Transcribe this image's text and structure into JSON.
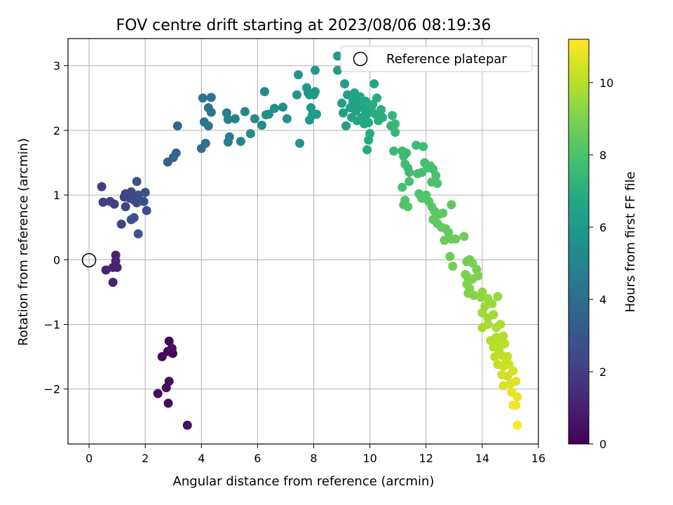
{
  "chart_data": {
    "type": "scatter",
    "title": "FOV centre drift starting at 2023/08/06 08:19:36",
    "xlabel": "Angular distance from reference (arcmin)",
    "ylabel": "Rotation from reference (arcmin)",
    "xlim": [
      -0.75,
      16
    ],
    "ylim": [
      -2.85,
      3.42
    ],
    "xticks": [
      0,
      2,
      4,
      6,
      8,
      10,
      12,
      14,
      16
    ],
    "xtick_labels": [
      "0",
      "2",
      "4",
      "6",
      "8",
      "10",
      "12",
      "14",
      "16"
    ],
    "yticks": [
      -2,
      -1,
      0,
      1,
      2,
      3
    ],
    "ytick_labels": [
      "−2",
      "−1",
      "0",
      "1",
      "2",
      "3"
    ],
    "grid": true,
    "legend": {
      "placement": "upper right",
      "label": "Reference platepar"
    },
    "reference_point": {
      "x": 0,
      "y": 0
    },
    "colorbar": {
      "label": "Hours from first FF file",
      "range": [
        0,
        11.2
      ],
      "ticks": [
        0,
        2,
        4,
        6,
        8,
        10
      ],
      "tick_labels": [
        "0",
        "2",
        "4",
        "6",
        "8",
        "10"
      ],
      "colormap": "viridis"
    },
    "points": [
      {
        "x": 2.85,
        "y": -1.26,
        "c": 0.1
      },
      {
        "x": 2.95,
        "y": -1.38,
        "c": 0.2
      },
      {
        "x": 2.8,
        "y": -1.42,
        "c": 0.2
      },
      {
        "x": 2.98,
        "y": -1.45,
        "c": 0.25
      },
      {
        "x": 2.6,
        "y": -1.5,
        "c": 0.3
      },
      {
        "x": 2.85,
        "y": -1.88,
        "c": 0.35
      },
      {
        "x": 2.75,
        "y": -1.98,
        "c": 0.4
      },
      {
        "x": 2.45,
        "y": -2.07,
        "c": 0.3
      },
      {
        "x": 2.82,
        "y": -2.22,
        "c": 0.35
      },
      {
        "x": 3.5,
        "y": -2.56,
        "c": 0.4
      },
      {
        "x": 2.95,
        "y": -1.37,
        "c": 0.45
      },
      {
        "x": 0.95,
        "y": 0.07,
        "c": 1.0
      },
      {
        "x": 0.6,
        "y": -0.16,
        "c": 1.1
      },
      {
        "x": 0.85,
        "y": -0.12,
        "c": 1.1
      },
      {
        "x": 1.0,
        "y": -0.12,
        "c": 1.15
      },
      {
        "x": 0.95,
        "y": -0.02,
        "c": 1.2
      },
      {
        "x": 0.85,
        "y": -0.35,
        "c": 1.1
      },
      {
        "x": 0.45,
        "y": 1.13,
        "c": 2.0
      },
      {
        "x": 0.5,
        "y": 0.89,
        "c": 2.0
      },
      {
        "x": 0.75,
        "y": 0.9,
        "c": 2.1
      },
      {
        "x": 0.9,
        "y": 0.86,
        "c": 2.1
      },
      {
        "x": 1.15,
        "y": 0.55,
        "c": 2.2
      },
      {
        "x": 1.3,
        "y": 0.82,
        "c": 2.2
      },
      {
        "x": 1.25,
        "y": 0.97,
        "c": 2.3
      },
      {
        "x": 1.3,
        "y": 1.02,
        "c": 2.3
      },
      {
        "x": 1.45,
        "y": 0.95,
        "c": 2.4
      },
      {
        "x": 1.5,
        "y": 1.05,
        "c": 2.4
      },
      {
        "x": 1.6,
        "y": 0.92,
        "c": 2.5
      },
      {
        "x": 1.7,
        "y": 0.88,
        "c": 2.5
      },
      {
        "x": 1.75,
        "y": 1.0,
        "c": 2.6
      },
      {
        "x": 1.8,
        "y": 0.92,
        "c": 2.6
      },
      {
        "x": 1.95,
        "y": 0.9,
        "c": 2.6
      },
      {
        "x": 2.0,
        "y": 1.04,
        "c": 2.7
      },
      {
        "x": 2.05,
        "y": 0.76,
        "c": 2.7
      },
      {
        "x": 1.5,
        "y": 0.62,
        "c": 2.8
      },
      {
        "x": 1.6,
        "y": 0.65,
        "c": 2.8
      },
      {
        "x": 1.7,
        "y": 1.21,
        "c": 2.8
      },
      {
        "x": 1.75,
        "y": 0.4,
        "c": 2.9
      },
      {
        "x": 1.4,
        "y": 1.0,
        "c": 2.5
      },
      {
        "x": 2.8,
        "y": 1.51,
        "c": 3.5
      },
      {
        "x": 3.0,
        "y": 1.58,
        "c": 3.6
      },
      {
        "x": 3.1,
        "y": 1.65,
        "c": 3.6
      },
      {
        "x": 3.15,
        "y": 2.07,
        "c": 3.7
      },
      {
        "x": 4.0,
        "y": 1.72,
        "c": 4.0
      },
      {
        "x": 4.15,
        "y": 1.8,
        "c": 4.1
      },
      {
        "x": 4.05,
        "y": 2.5,
        "c": 4.2
      },
      {
        "x": 4.35,
        "y": 2.51,
        "c": 4.2
      },
      {
        "x": 4.25,
        "y": 2.35,
        "c": 4.3
      },
      {
        "x": 4.35,
        "y": 2.28,
        "c": 4.3
      },
      {
        "x": 4.1,
        "y": 2.13,
        "c": 4.3
      },
      {
        "x": 4.25,
        "y": 2.07,
        "c": 4.4
      },
      {
        "x": 4.9,
        "y": 2.27,
        "c": 4.6
      },
      {
        "x": 4.95,
        "y": 2.17,
        "c": 4.7
      },
      {
        "x": 5.2,
        "y": 2.18,
        "c": 4.8
      },
      {
        "x": 5.0,
        "y": 1.9,
        "c": 4.7
      },
      {
        "x": 4.95,
        "y": 1.82,
        "c": 4.8
      },
      {
        "x": 5.4,
        "y": 1.83,
        "c": 5.0
      },
      {
        "x": 5.55,
        "y": 2.29,
        "c": 5.0
      },
      {
        "x": 5.75,
        "y": 1.95,
        "c": 5.2
      },
      {
        "x": 5.9,
        "y": 2.18,
        "c": 5.2
      },
      {
        "x": 6.15,
        "y": 2.08,
        "c": 5.3
      },
      {
        "x": 6.3,
        "y": 2.24,
        "c": 5.4
      },
      {
        "x": 6.25,
        "y": 2.6,
        "c": 5.3
      },
      {
        "x": 6.4,
        "y": 2.25,
        "c": 5.5
      },
      {
        "x": 6.6,
        "y": 2.34,
        "c": 5.5
      },
      {
        "x": 6.9,
        "y": 2.36,
        "c": 5.6
      },
      {
        "x": 7.05,
        "y": 2.18,
        "c": 5.7
      },
      {
        "x": 7.45,
        "y": 2.86,
        "c": 5.8
      },
      {
        "x": 7.4,
        "y": 2.55,
        "c": 5.8
      },
      {
        "x": 7.5,
        "y": 1.8,
        "c": 5.9
      },
      {
        "x": 7.75,
        "y": 2.66,
        "c": 5.9
      },
      {
        "x": 7.8,
        "y": 2.58,
        "c": 5.9
      },
      {
        "x": 7.85,
        "y": 2.55,
        "c": 6.0
      },
      {
        "x": 7.9,
        "y": 2.35,
        "c": 6.0
      },
      {
        "x": 7.85,
        "y": 2.16,
        "c": 6.0
      },
      {
        "x": 7.95,
        "y": 2.24,
        "c": 6.1
      },
      {
        "x": 8.05,
        "y": 2.93,
        "c": 6.0
      },
      {
        "x": 8.1,
        "y": 2.25,
        "c": 6.1
      },
      {
        "x": 8.05,
        "y": 2.6,
        "c": 6.1
      },
      {
        "x": 8.0,
        "y": 2.55,
        "c": 6.1
      },
      {
        "x": 8.85,
        "y": 3.15,
        "c": 6.1
      },
      {
        "x": 8.85,
        "y": 2.93,
        "c": 6.1
      },
      {
        "x": 9.1,
        "y": 2.72,
        "c": 6.2
      },
      {
        "x": 9.0,
        "y": 2.42,
        "c": 6.2
      },
      {
        "x": 9.05,
        "y": 2.27,
        "c": 6.3
      },
      {
        "x": 9.15,
        "y": 2.07,
        "c": 6.3
      },
      {
        "x": 9.2,
        "y": 2.55,
        "c": 6.3
      },
      {
        "x": 9.3,
        "y": 2.35,
        "c": 6.4
      },
      {
        "x": 9.4,
        "y": 2.45,
        "c": 6.4
      },
      {
        "x": 9.35,
        "y": 2.2,
        "c": 6.4
      },
      {
        "x": 9.45,
        "y": 2.58,
        "c": 6.5
      },
      {
        "x": 9.5,
        "y": 2.3,
        "c": 6.5
      },
      {
        "x": 9.55,
        "y": 2.15,
        "c": 6.5
      },
      {
        "x": 9.6,
        "y": 2.42,
        "c": 6.5
      },
      {
        "x": 9.65,
        "y": 2.52,
        "c": 6.6
      },
      {
        "x": 9.7,
        "y": 2.2,
        "c": 6.6
      },
      {
        "x": 9.75,
        "y": 2.35,
        "c": 6.6
      },
      {
        "x": 9.8,
        "y": 2.1,
        "c": 6.7
      },
      {
        "x": 9.85,
        "y": 2.45,
        "c": 6.7
      },
      {
        "x": 9.9,
        "y": 2.25,
        "c": 6.7
      },
      {
        "x": 9.95,
        "y": 2.12,
        "c": 6.8
      },
      {
        "x": 9.95,
        "y": 1.85,
        "c": 6.8
      },
      {
        "x": 9.9,
        "y": 1.7,
        "c": 6.8
      },
      {
        "x": 10.0,
        "y": 1.95,
        "c": 6.8
      },
      {
        "x": 10.05,
        "y": 2.35,
        "c": 6.9
      },
      {
        "x": 10.15,
        "y": 2.72,
        "c": 6.7
      },
      {
        "x": 10.2,
        "y": 2.25,
        "c": 6.9
      },
      {
        "x": 10.25,
        "y": 2.5,
        "c": 6.9
      },
      {
        "x": 10.3,
        "y": 2.15,
        "c": 7.0
      },
      {
        "x": 10.4,
        "y": 2.32,
        "c": 7.0
      },
      {
        "x": 10.45,
        "y": 2.2,
        "c": 7.0
      },
      {
        "x": 9.55,
        "y": 2.35,
        "c": 6.5
      },
      {
        "x": 9.75,
        "y": 2.45,
        "c": 6.6
      },
      {
        "x": 10.1,
        "y": 2.4,
        "c": 6.9
      },
      {
        "x": 9.45,
        "y": 2.5,
        "c": 6.5
      },
      {
        "x": 9.85,
        "y": 2.3,
        "c": 6.7
      },
      {
        "x": 10.8,
        "y": 2.23,
        "c": 7.3
      },
      {
        "x": 10.75,
        "y": 2.07,
        "c": 7.3
      },
      {
        "x": 10.9,
        "y": 2.1,
        "c": 7.4
      },
      {
        "x": 10.9,
        "y": 1.97,
        "c": 7.4
      },
      {
        "x": 10.85,
        "y": 1.68,
        "c": 7.5
      },
      {
        "x": 11.15,
        "y": 1.68,
        "c": 7.6
      },
      {
        "x": 11.2,
        "y": 1.6,
        "c": 7.6
      },
      {
        "x": 11.3,
        "y": 1.65,
        "c": 7.6
      },
      {
        "x": 11.25,
        "y": 1.48,
        "c": 7.7
      },
      {
        "x": 11.35,
        "y": 1.42,
        "c": 7.7
      },
      {
        "x": 11.4,
        "y": 1.35,
        "c": 7.7
      },
      {
        "x": 11.65,
        "y": 1.77,
        "c": 7.6
      },
      {
        "x": 11.9,
        "y": 1.75,
        "c": 7.7
      },
      {
        "x": 11.7,
        "y": 1.33,
        "c": 7.8
      },
      {
        "x": 11.85,
        "y": 1.35,
        "c": 7.8
      },
      {
        "x": 11.95,
        "y": 1.5,
        "c": 7.8
      },
      {
        "x": 12.05,
        "y": 1.42,
        "c": 7.9
      },
      {
        "x": 12.15,
        "y": 1.45,
        "c": 7.9
      },
      {
        "x": 12.25,
        "y": 1.4,
        "c": 7.9
      },
      {
        "x": 12.35,
        "y": 1.3,
        "c": 8.0
      },
      {
        "x": 12.2,
        "y": 1.2,
        "c": 8.0
      },
      {
        "x": 12.4,
        "y": 1.18,
        "c": 8.0
      },
      {
        "x": 11.4,
        "y": 1.21,
        "c": 7.9
      },
      {
        "x": 11.15,
        "y": 1.12,
        "c": 7.9
      },
      {
        "x": 11.75,
        "y": 1.02,
        "c": 8.0
      },
      {
        "x": 11.85,
        "y": 0.95,
        "c": 8.1
      },
      {
        "x": 12.0,
        "y": 1.0,
        "c": 8.1
      },
      {
        "x": 11.25,
        "y": 0.92,
        "c": 8.1
      },
      {
        "x": 11.2,
        "y": 0.85,
        "c": 8.1
      },
      {
        "x": 11.35,
        "y": 0.82,
        "c": 8.2
      },
      {
        "x": 12.1,
        "y": 0.9,
        "c": 8.2
      },
      {
        "x": 12.2,
        "y": 0.82,
        "c": 8.3
      },
      {
        "x": 12.3,
        "y": 0.75,
        "c": 8.3
      },
      {
        "x": 12.45,
        "y": 0.7,
        "c": 8.3
      },
      {
        "x": 12.6,
        "y": 0.72,
        "c": 8.4
      },
      {
        "x": 12.25,
        "y": 0.62,
        "c": 8.4
      },
      {
        "x": 12.4,
        "y": 0.56,
        "c": 8.4
      },
      {
        "x": 12.55,
        "y": 0.5,
        "c": 8.5
      },
      {
        "x": 12.7,
        "y": 0.48,
        "c": 8.5
      },
      {
        "x": 12.8,
        "y": 0.42,
        "c": 8.5
      },
      {
        "x": 12.65,
        "y": 0.3,
        "c": 8.6
      },
      {
        "x": 12.9,
        "y": 0.85,
        "c": 8.4
      },
      {
        "x": 12.9,
        "y": 0.32,
        "c": 8.6
      },
      {
        "x": 13.05,
        "y": 0.32,
        "c": 8.7
      },
      {
        "x": 12.85,
        "y": 0.05,
        "c": 8.7
      },
      {
        "x": 12.95,
        "y": -0.1,
        "c": 8.8
      },
      {
        "x": 13.35,
        "y": 0.36,
        "c": 8.7
      },
      {
        "x": 13.45,
        "y": -0.03,
        "c": 8.8
      },
      {
        "x": 13.55,
        "y": 0.0,
        "c": 8.8
      },
      {
        "x": 13.65,
        "y": -0.05,
        "c": 8.9
      },
      {
        "x": 13.8,
        "y": -0.15,
        "c": 8.9
      },
      {
        "x": 13.4,
        "y": -0.23,
        "c": 8.9
      },
      {
        "x": 13.5,
        "y": -0.28,
        "c": 9.0
      },
      {
        "x": 13.65,
        "y": -0.3,
        "c": 9.0
      },
      {
        "x": 13.85,
        "y": -0.25,
        "c": 9.0
      },
      {
        "x": 13.45,
        "y": -0.38,
        "c": 9.1
      },
      {
        "x": 13.55,
        "y": -0.44,
        "c": 9.1
      },
      {
        "x": 13.5,
        "y": -0.52,
        "c": 9.1
      },
      {
        "x": 13.7,
        "y": -0.55,
        "c": 9.2
      },
      {
        "x": 13.95,
        "y": -0.58,
        "c": 9.3
      },
      {
        "x": 14.0,
        "y": -0.5,
        "c": 9.3
      },
      {
        "x": 14.2,
        "y": -0.6,
        "c": 9.4
      },
      {
        "x": 14.55,
        "y": -0.57,
        "c": 9.4
      },
      {
        "x": 14.1,
        "y": -0.72,
        "c": 9.5
      },
      {
        "x": 14.35,
        "y": -0.68,
        "c": 9.5
      },
      {
        "x": 14.0,
        "y": -0.82,
        "c": 9.6
      },
      {
        "x": 14.2,
        "y": -0.9,
        "c": 9.6
      },
      {
        "x": 14.4,
        "y": -0.85,
        "c": 9.6
      },
      {
        "x": 14.0,
        "y": -1.05,
        "c": 9.7
      },
      {
        "x": 14.2,
        "y": -1.0,
        "c": 9.7
      },
      {
        "x": 14.5,
        "y": -1.05,
        "c": 9.8
      },
      {
        "x": 14.65,
        "y": -1.0,
        "c": 9.8
      },
      {
        "x": 14.3,
        "y": -1.25,
        "c": 9.9
      },
      {
        "x": 14.5,
        "y": -1.2,
        "c": 9.9
      },
      {
        "x": 14.75,
        "y": -1.18,
        "c": 9.9
      },
      {
        "x": 14.4,
        "y": -1.35,
        "c": 10.0
      },
      {
        "x": 14.6,
        "y": -1.4,
        "c": 10.0
      },
      {
        "x": 14.8,
        "y": -1.3,
        "c": 10.0
      },
      {
        "x": 14.45,
        "y": -1.5,
        "c": 10.1
      },
      {
        "x": 14.7,
        "y": -1.48,
        "c": 10.1
      },
      {
        "x": 14.9,
        "y": -1.5,
        "c": 10.2
      },
      {
        "x": 14.55,
        "y": -1.62,
        "c": 10.2
      },
      {
        "x": 14.75,
        "y": -1.65,
        "c": 10.3
      },
      {
        "x": 14.95,
        "y": -1.62,
        "c": 10.3
      },
      {
        "x": 14.7,
        "y": -1.78,
        "c": 10.4
      },
      {
        "x": 14.9,
        "y": -1.8,
        "c": 10.4
      },
      {
        "x": 15.1,
        "y": -1.72,
        "c": 10.5
      },
      {
        "x": 14.75,
        "y": -1.95,
        "c": 10.6
      },
      {
        "x": 15.0,
        "y": -1.92,
        "c": 10.6
      },
      {
        "x": 15.2,
        "y": -1.88,
        "c": 10.7
      },
      {
        "x": 15.05,
        "y": -2.05,
        "c": 10.8
      },
      {
        "x": 15.25,
        "y": -2.12,
        "c": 10.9
      },
      {
        "x": 15.1,
        "y": -2.25,
        "c": 11.0
      },
      {
        "x": 15.2,
        "y": -2.25,
        "c": 11.0
      },
      {
        "x": 15.25,
        "y": -2.56,
        "c": 11.2
      },
      {
        "x": 14.85,
        "y": -1.55,
        "c": 10.2
      },
      {
        "x": 14.6,
        "y": -1.3,
        "c": 10.0
      }
    ]
  }
}
